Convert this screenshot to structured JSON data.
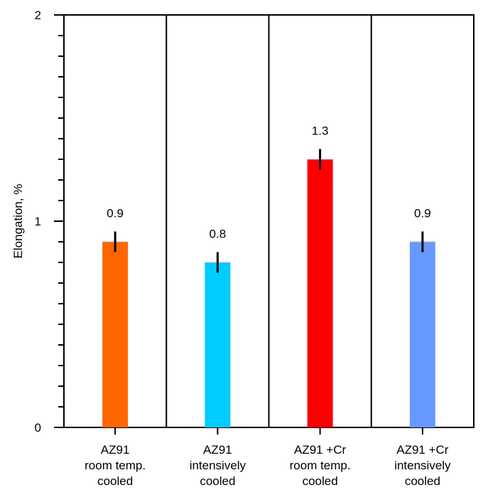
{
  "chart_data": {
    "type": "bar",
    "title": "",
    "xlabel": "",
    "ylabel": "Elongation, %",
    "ylim": [
      0,
      2
    ],
    "major_ticks": [
      0,
      1,
      2
    ],
    "minor_tick_step": 0.1,
    "grid": false,
    "legend": "none",
    "categories": [
      [
        "AZ91",
        "room temp.",
        "cooled"
      ],
      [
        "AZ91",
        "intensively",
        "cooled"
      ],
      [
        "AZ91 +Cr",
        "room temp.",
        "cooled"
      ],
      [
        "AZ91 +Cr",
        "intensively",
        "cooled"
      ]
    ],
    "values": [
      0.9,
      0.8,
      1.3,
      0.9
    ],
    "value_labels": [
      "0.9",
      "0.8",
      "1.3",
      "0.9"
    ],
    "error": [
      0.05,
      0.05,
      0.05,
      0.05
    ],
    "colors": [
      "#ff6600",
      "#00ccff",
      "#ff0000",
      "#6699ff"
    ]
  }
}
